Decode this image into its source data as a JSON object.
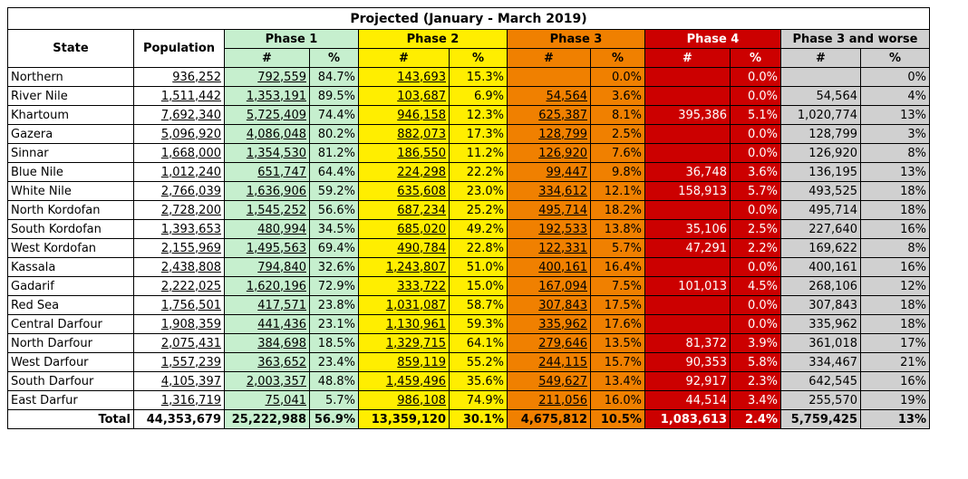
{
  "title": "Projected (January - March 2019)",
  "headers": {
    "state": "State",
    "population": "Population",
    "phases": [
      "Phase 1",
      "Phase 2",
      "Phase 3",
      "Phase 4",
      "Phase 3 and worse"
    ],
    "num": "#",
    "pct": "%"
  },
  "colors": {
    "phase1": "#c6efce",
    "phase2": "#ffee00",
    "phase3": "#f08000",
    "phase4": "#cc0000",
    "phase3_and_worse": "#d0d0d0"
  },
  "rows": [
    {
      "state": "Northern",
      "population": "936,252",
      "p1": "792,559",
      "p1pct": "84.7%",
      "p2": "143,693",
      "p2pct": "15.3%",
      "p3": "",
      "p3pct": "0.0%",
      "p4": "",
      "p4pct": "0.0%",
      "p3w": "",
      "p3wpct": "0%"
    },
    {
      "state": "River Nile",
      "population": "1,511,442",
      "p1": "1,353,191",
      "p1pct": "89.5%",
      "p2": "103,687",
      "p2pct": "6.9%",
      "p3": "54,564",
      "p3pct": "3.6%",
      "p4": "",
      "p4pct": "0.0%",
      "p3w": "54,564",
      "p3wpct": "4%"
    },
    {
      "state": "Khartoum",
      "population": "7,692,340",
      "p1": "5,725,409",
      "p1pct": "74.4%",
      "p2": "946,158",
      "p2pct": "12.3%",
      "p3": "625,387",
      "p3pct": "8.1%",
      "p4": "395,386",
      "p4pct": "5.1%",
      "p3w": "1,020,774",
      "p3wpct": "13%"
    },
    {
      "state": "Gazera",
      "population": "5,096,920",
      "p1": "4,086,048",
      "p1pct": "80.2%",
      "p2": "882,073",
      "p2pct": "17.3%",
      "p3": "128,799",
      "p3pct": "2.5%",
      "p4": "",
      "p4pct": "0.0%",
      "p3w": "128,799",
      "p3wpct": "3%"
    },
    {
      "state": "Sinnar",
      "population": "1,668,000",
      "p1": "1,354,530",
      "p1pct": "81.2%",
      "p2": "186,550",
      "p2pct": "11.2%",
      "p3": "126,920",
      "p3pct": "7.6%",
      "p4": "",
      "p4pct": "0.0%",
      "p3w": "126,920",
      "p3wpct": "8%"
    },
    {
      "state": "Blue Nile",
      "population": "1,012,240",
      "p1": "651,747",
      "p1pct": "64.4%",
      "p2": "224,298",
      "p2pct": "22.2%",
      "p3": "99,447",
      "p3pct": "9.8%",
      "p4": "36,748",
      "p4pct": "3.6%",
      "p3w": "136,195",
      "p3wpct": "13%"
    },
    {
      "state": "White Nile",
      "population": "2,766,039",
      "p1": "1,636,906",
      "p1pct": "59.2%",
      "p2": "635,608",
      "p2pct": "23.0%",
      "p3": "334,612",
      "p3pct": "12.1%",
      "p4": "158,913",
      "p4pct": "5.7%",
      "p3w": "493,525",
      "p3wpct": "18%"
    },
    {
      "state": "North Kordofan",
      "population": "2,728,200",
      "p1": "1,545,252",
      "p1pct": "56.6%",
      "p2": "687,234",
      "p2pct": "25.2%",
      "p3": "495,714",
      "p3pct": "18.2%",
      "p4": "",
      "p4pct": "0.0%",
      "p3w": "495,714",
      "p3wpct": "18%"
    },
    {
      "state": "South Kordofan",
      "population": "1,393,653",
      "p1": "480,994",
      "p1pct": "34.5%",
      "p2": "685,020",
      "p2pct": "49.2%",
      "p3": "192,533",
      "p3pct": "13.8%",
      "p4": "35,106",
      "p4pct": "2.5%",
      "p3w": "227,640",
      "p3wpct": "16%"
    },
    {
      "state": "West Kordofan",
      "population": "2,155,969",
      "p1": "1,495,563",
      "p1pct": "69.4%",
      "p2": "490,784",
      "p2pct": "22.8%",
      "p3": "122,331",
      "p3pct": "5.7%",
      "p4": "47,291",
      "p4pct": "2.2%",
      "p3w": "169,622",
      "p3wpct": "8%"
    },
    {
      "state": "Kassala",
      "population": "2,438,808",
      "p1": "794,840",
      "p1pct": "32.6%",
      "p2": "1,243,807",
      "p2pct": "51.0%",
      "p3": "400,161",
      "p3pct": "16.4%",
      "p4": "",
      "p4pct": "0.0%",
      "p3w": "400,161",
      "p3wpct": "16%"
    },
    {
      "state": "Gadarif",
      "population": "2,222,025",
      "p1": "1,620,196",
      "p1pct": "72.9%",
      "p2": "333,722",
      "p2pct": "15.0%",
      "p3": "167,094",
      "p3pct": "7.5%",
      "p4": "101,013",
      "p4pct": "4.5%",
      "p3w": "268,106",
      "p3wpct": "12%"
    },
    {
      "state": "Red Sea",
      "population": "1,756,501",
      "p1": "417,571",
      "p1pct": "23.8%",
      "p2": "1,031,087",
      "p2pct": "58.7%",
      "p3": "307,843",
      "p3pct": "17.5%",
      "p4": "",
      "p4pct": "0.0%",
      "p3w": "307,843",
      "p3wpct": "18%"
    },
    {
      "state": "Central Darfour",
      "population": "1,908,359",
      "p1": "441,436",
      "p1pct": "23.1%",
      "p2": "1,130,961",
      "p2pct": "59.3%",
      "p3": "335,962",
      "p3pct": "17.6%",
      "p4": "",
      "p4pct": "0.0%",
      "p3w": "335,962",
      "p3wpct": "18%"
    },
    {
      "state": "North Darfour",
      "population": "2,075,431",
      "p1": "384,698",
      "p1pct": "18.5%",
      "p2": "1,329,715",
      "p2pct": "64.1%",
      "p3": "279,646",
      "p3pct": "13.5%",
      "p4": "81,372",
      "p4pct": "3.9%",
      "p3w": "361,018",
      "p3wpct": "17%"
    },
    {
      "state": "West Darfour",
      "population": "1,557,239",
      "p1": "363,652",
      "p1pct": "23.4%",
      "p2": "859,119",
      "p2pct": "55.2%",
      "p3": "244,115",
      "p3pct": "15.7%",
      "p4": "90,353",
      "p4pct": "5.8%",
      "p3w": "334,467",
      "p3wpct": "21%"
    },
    {
      "state": "South Darfour",
      "population": "4,105,397",
      "p1": "2,003,357",
      "p1pct": "48.8%",
      "p2": "1,459,496",
      "p2pct": "35.6%",
      "p3": "549,627",
      "p3pct": "13.4%",
      "p4": "92,917",
      "p4pct": "2.3%",
      "p3w": "642,545",
      "p3wpct": "16%"
    },
    {
      "state": "East Darfur",
      "population": "1,316,719",
      "p1": "75,041",
      "p1pct": "5.7%",
      "p2": "986,108",
      "p2pct": "74.9%",
      "p3": "211,056",
      "p3pct": "16.0%",
      "p4": "44,514",
      "p4pct": "3.4%",
      "p3w": "255,570",
      "p3wpct": "19%"
    }
  ],
  "total": {
    "label": "Total",
    "population": "44,353,679",
    "p1": "25,222,988",
    "p1pct": "56.9%",
    "p2": "13,359,120",
    "p2pct": "30.1%",
    "p3": "4,675,812",
    "p3pct": "10.5%",
    "p4": "1,083,613",
    "p4pct": "2.4%",
    "p3w": "5,759,425",
    "p3wpct": "13%"
  }
}
